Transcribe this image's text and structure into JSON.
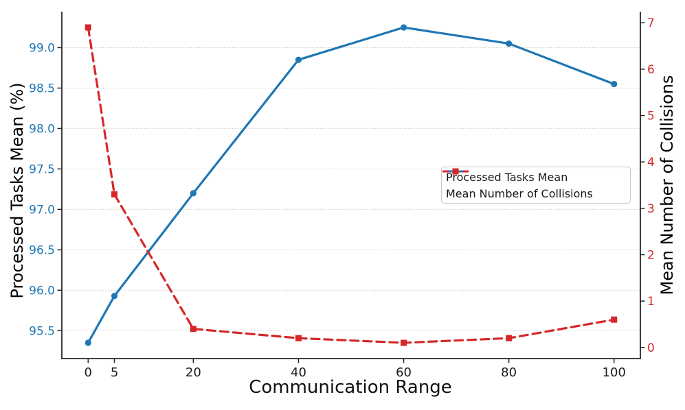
{
  "figure": {
    "background": "#ffffff",
    "colors": {
      "blue": "#1f77b4",
      "red": "#d62728",
      "grid": "#c9c9c9",
      "spine": "#262626",
      "tick_text": "#1a1a1a"
    }
  },
  "chart_data": {
    "type": "line",
    "title": "",
    "xlabel": "Communication Range",
    "x": [
      0,
      5,
      20,
      40,
      60,
      80,
      100
    ],
    "xlim": [
      -5,
      105
    ],
    "xticks": [
      0,
      5,
      20,
      40,
      60,
      80,
      100
    ],
    "xtick_labels": [
      "0",
      "5",
      "20",
      "40",
      "60",
      "80",
      "100"
    ],
    "grid": "horizontal dotted lines at left-axis ticks",
    "series": [
      {
        "name": "Processed Tasks Mean",
        "axis": "left",
        "color": "#1f77b4",
        "line_style": "solid",
        "marker": "circle",
        "values": [
          95.35,
          95.93,
          97.2,
          98.85,
          99.25,
          99.05,
          98.55
        ]
      },
      {
        "name": "Mean Number of Collisions",
        "axis": "right",
        "color": "#d62728",
        "line_style": "dashed",
        "marker": "square",
        "values": [
          6.9,
          3.3,
          0.4,
          0.2,
          0.1,
          0.2,
          0.6
        ]
      }
    ],
    "left_axis": {
      "label": "Processed Tasks Mean (%)",
      "color": "#1f77b4",
      "ylim": [
        95.155,
        99.445
      ],
      "ticks": [
        95.5,
        96.0,
        96.5,
        97.0,
        97.5,
        98.0,
        98.5,
        99.0
      ],
      "tick_labels": [
        "95.5",
        "96.0",
        "96.5",
        "97.0",
        "97.5",
        "98.0",
        "98.5",
        "99.0"
      ]
    },
    "right_axis": {
      "label": "Mean Number of Collisions",
      "color": "#d62728",
      "ylim": [
        -0.24,
        7.24
      ],
      "ticks": [
        0,
        1,
        2,
        3,
        4,
        5,
        6,
        7
      ],
      "tick_labels": [
        "0",
        "1",
        "2",
        "3",
        "4",
        "5",
        "6",
        "7"
      ]
    },
    "legend": {
      "position": "center right inside plot",
      "entries": [
        "Processed Tasks Mean",
        "Mean Number of Collisions"
      ]
    }
  }
}
